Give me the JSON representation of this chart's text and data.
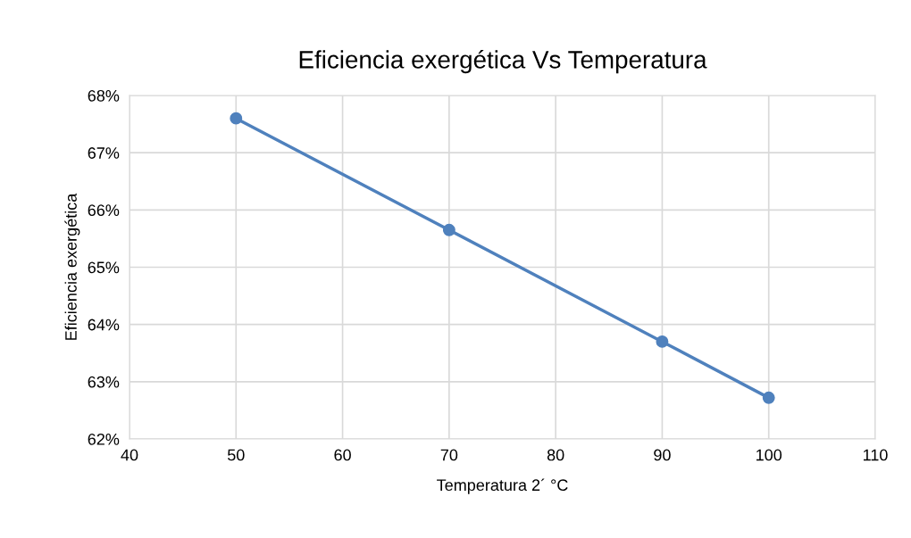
{
  "chart_data": {
    "type": "line",
    "title": "Eficiencia exergética Vs Temperatura",
    "xlabel": "Temperatura 2´ °C",
    "ylabel": "Eficiencia exergética",
    "x": [
      50,
      70,
      90,
      100
    ],
    "series": [
      {
        "color": "#4f81bd",
        "values": [
          67.6,
          65.65,
          63.7,
          62.72
        ]
      }
    ],
    "xlim": [
      40,
      110
    ],
    "xticks": [
      40,
      50,
      60,
      70,
      80,
      90,
      100,
      110
    ],
    "ylim": [
      62,
      68
    ],
    "yticks": [
      {
        "value": 62,
        "label": "62%"
      },
      {
        "value": 63,
        "label": "63%"
      },
      {
        "value": 64,
        "label": "64%"
      },
      {
        "value": 65,
        "label": "65%"
      },
      {
        "value": 66,
        "label": "66%"
      },
      {
        "value": 67,
        "label": "67%"
      },
      {
        "value": 68,
        "label": "68%"
      }
    ],
    "grid": true,
    "marker": "circle",
    "line_style": "solid"
  }
}
